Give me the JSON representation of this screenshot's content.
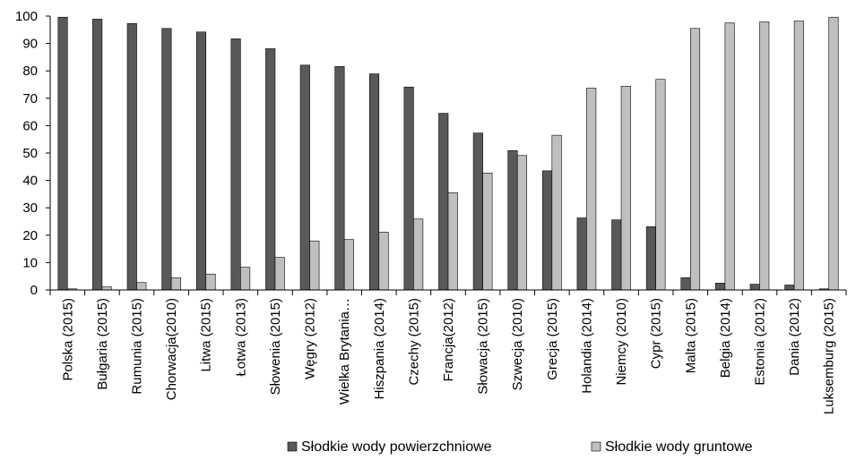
{
  "chart_data": {
    "type": "bar",
    "title": "",
    "xlabel": "",
    "ylabel": "",
    "ylim": [
      0,
      100
    ],
    "yticks": [
      0,
      10,
      20,
      30,
      40,
      50,
      60,
      70,
      80,
      90,
      100
    ],
    "grid": false,
    "legend_position": "bottom",
    "categories": [
      "Polska (2015)",
      "Bułgaria (2015)",
      "Rumunia (2015)",
      "Chorwacja(2010)",
      "Litwa (2015)",
      "Łotwa (2013)",
      "Słowenia (2015)",
      "Węgry (2012)",
      "Wielka Brytania…",
      "Hiszpania (2014)",
      "Czechy (2015)",
      "Francja(2012)",
      "Słowacja (2015)",
      "Szwecja (2010)",
      "Grecja (2015)",
      "Holandia (2014)",
      "Niemcy (2010)",
      "Cypr (2015)",
      "Malta (2015)",
      "Belgia (2014)",
      "Estonia (2012)",
      "Dania (2012)",
      "Luksemburg (2015)"
    ],
    "series": [
      {
        "name": "Słodkie wody powierzchniowe",
        "color": "#595959",
        "values": [
          99.6,
          98.9,
          97.3,
          95.5,
          94.2,
          91.7,
          88.1,
          82.1,
          81.6,
          78.9,
          74.1,
          64.5,
          57.3,
          50.9,
          43.5,
          26.3,
          25.6,
          23.1,
          4.5,
          2.5,
          2.1,
          1.8,
          0.4
        ]
      },
      {
        "name": "Słodkie wody gruntowe",
        "color": "#bfbfbf",
        "values": [
          0.4,
          1.1,
          2.7,
          4.5,
          5.8,
          8.3,
          11.9,
          17.9,
          18.4,
          21.1,
          25.9,
          35.5,
          42.7,
          49.1,
          56.5,
          73.7,
          74.4,
          76.9,
          95.5,
          97.5,
          97.9,
          98.2,
          99.6
        ]
      }
    ]
  }
}
